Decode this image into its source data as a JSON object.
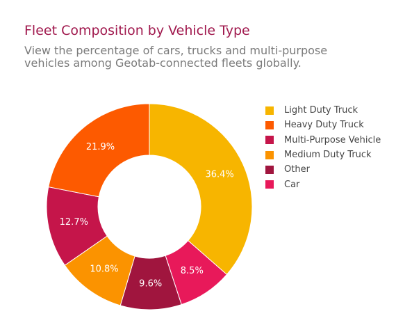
{
  "chart_data": {
    "type": "pie",
    "title": "Fleet Composition by Vehicle Type",
    "subtitle": "View the percentage of cars, trucks and multi-purpose vehicles among Geotab-connected fleets globally.",
    "hole": 0.5,
    "legend_position": "right",
    "slices": [
      {
        "label": "Light Duty Truck",
        "value": 36.4,
        "display": "36.4%",
        "color": "#f7b500"
      },
      {
        "label": "Car",
        "value": 8.5,
        "display": "8.5%",
        "color": "#e8195a"
      },
      {
        "label": "Other",
        "value": 9.6,
        "display": "9.6%",
        "color": "#a0153e"
      },
      {
        "label": "Medium Duty Truck",
        "value": 10.8,
        "display": "10.8%",
        "color": "#fb9300"
      },
      {
        "label": "Multi-Purpose Vehicle",
        "value": 12.7,
        "display": "12.7%",
        "color": "#c5154a"
      },
      {
        "label": "Heavy Duty Truck",
        "value": 21.9,
        "display": "21.9%",
        "color": "#fd5a00"
      }
    ],
    "legend": [
      {
        "label": "Light Duty Truck",
        "color": "#f7b500"
      },
      {
        "label": "Heavy Duty Truck",
        "color": "#fd5a00"
      },
      {
        "label": "Multi-Purpose Vehicle",
        "color": "#c5154a"
      },
      {
        "label": "Medium Duty Truck",
        "color": "#fb9300"
      },
      {
        "label": "Other",
        "color": "#a0153e"
      },
      {
        "label": "Car",
        "color": "#e8195a"
      }
    ]
  }
}
